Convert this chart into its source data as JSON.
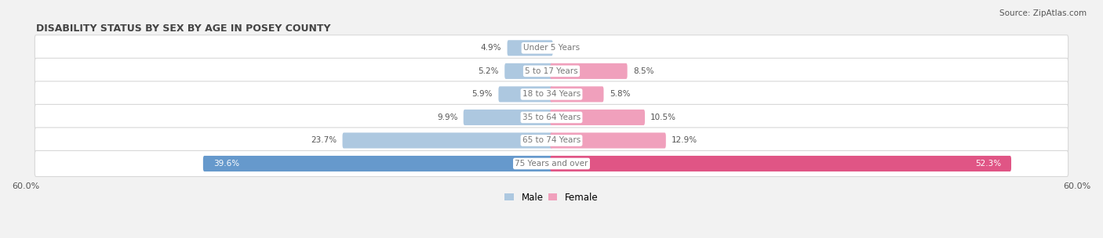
{
  "title": "DISABILITY STATUS BY SEX BY AGE IN POSEY COUNTY",
  "source": "Source: ZipAtlas.com",
  "categories": [
    "Under 5 Years",
    "5 to 17 Years",
    "18 to 34 Years",
    "35 to 64 Years",
    "65 to 74 Years",
    "75 Years and over"
  ],
  "male_values": [
    4.9,
    5.2,
    5.9,
    9.9,
    23.7,
    39.6
  ],
  "female_values": [
    0.0,
    8.5,
    5.8,
    10.5,
    12.9,
    52.3
  ],
  "male_color_light": "#adc8e0",
  "male_color_dark": "#6699cc",
  "female_color_light": "#f0a0bc",
  "female_color_dark": "#e05585",
  "dark_threshold": 30.0,
  "axis_max": 60.0,
  "bg_color": "#f2f2f2",
  "row_bg_color": "#ffffff",
  "row_border_color": "#d8d8d8",
  "title_color": "#444444",
  "label_color": "#555555",
  "center_label_color": "#777777",
  "fig_width": 14.06,
  "fig_height": 3.04,
  "dpi": 100
}
